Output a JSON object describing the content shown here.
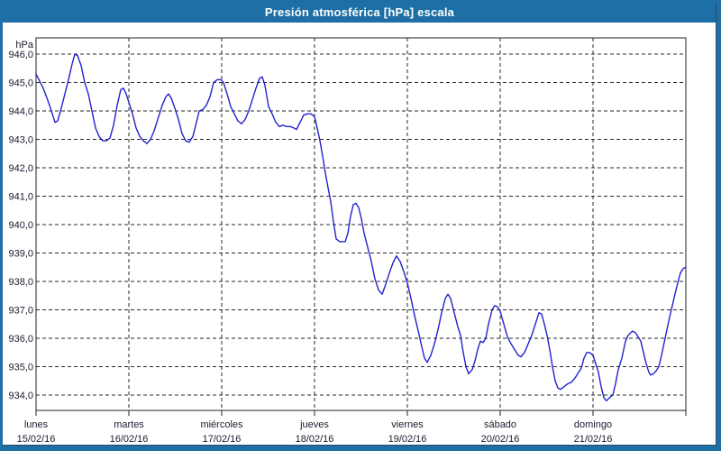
{
  "title": "Presión atmosférica [hPa] escala",
  "colors": {
    "titlebar_bg": "#1d6fa5",
    "titlebar_text": "#ffffff",
    "window_border": "#1d6fa5",
    "line": "#2222cc",
    "grid": "#2a2a2a",
    "frame": "#222222",
    "text": "#1a1a2e"
  },
  "y_axis": {
    "unit_label": "hPa",
    "tick_labels": [
      "946,0",
      "945,0",
      "944,0",
      "943,0",
      "942,0",
      "941,0",
      "940,0",
      "939,0",
      "938,0",
      "937,0",
      "936,0",
      "935,0",
      "934,0"
    ],
    "max": 946,
    "min": 934,
    "step": 1
  },
  "x_axis": {
    "days": [
      {
        "name": "lunes",
        "date": "15/02/16"
      },
      {
        "name": "martes",
        "date": "16/02/16"
      },
      {
        "name": "miércoles",
        "date": "17/02/16"
      },
      {
        "name": "jueves",
        "date": "18/02/16"
      },
      {
        "name": "viernes",
        "date": "19/02/16"
      },
      {
        "name": "sábado",
        "date": "20/02/16"
      },
      {
        "name": "domingo",
        "date": "21/02/16"
      }
    ]
  },
  "chart_data": {
    "type": "line",
    "title": "Presión atmosférica [hPa] escala",
    "ylabel": "hPa",
    "ylim": [
      934,
      946
    ],
    "grid": "dashed",
    "legend_position": "none",
    "x_unit": "days from 15/02/16 (0 = lunes 00:00, 7 = end of domingo)",
    "x_tick_positions": [
      0,
      1,
      2,
      3,
      4,
      5,
      6
    ],
    "series": [
      {
        "name": "Presión atmosférica",
        "color": "#2222cc",
        "points": [
          [
            0.0,
            945.3
          ],
          [
            0.039,
            945.05
          ],
          [
            0.078,
            944.8
          ],
          [
            0.117,
            944.45
          ],
          [
            0.155,
            944.1
          ],
          [
            0.204,
            943.6
          ],
          [
            0.233,
            943.65
          ],
          [
            0.272,
            944.1
          ],
          [
            0.311,
            944.6
          ],
          [
            0.35,
            945.1
          ],
          [
            0.388,
            945.65
          ],
          [
            0.417,
            946.0
          ],
          [
            0.447,
            945.95
          ],
          [
            0.485,
            945.6
          ],
          [
            0.524,
            945.0
          ],
          [
            0.563,
            944.6
          ],
          [
            0.602,
            944.0
          ],
          [
            0.641,
            943.4
          ],
          [
            0.68,
            943.1
          ],
          [
            0.718,
            942.95
          ],
          [
            0.757,
            942.95
          ],
          [
            0.796,
            943.05
          ],
          [
            0.835,
            943.5
          ],
          [
            0.874,
            944.2
          ],
          [
            0.913,
            944.75
          ],
          [
            0.942,
            944.8
          ],
          [
            0.971,
            944.6
          ],
          [
            1.0,
            944.3
          ],
          [
            1.039,
            943.9
          ],
          [
            1.078,
            943.4
          ],
          [
            1.117,
            943.1
          ],
          [
            1.155,
            942.95
          ],
          [
            1.194,
            942.85
          ],
          [
            1.233,
            943.0
          ],
          [
            1.272,
            943.3
          ],
          [
            1.311,
            943.7
          ],
          [
            1.359,
            944.2
          ],
          [
            1.398,
            944.5
          ],
          [
            1.427,
            944.6
          ],
          [
            1.456,
            944.45
          ],
          [
            1.495,
            944.1
          ],
          [
            1.534,
            943.7
          ],
          [
            1.573,
            943.2
          ],
          [
            1.612,
            942.95
          ],
          [
            1.65,
            942.9
          ],
          [
            1.689,
            943.1
          ],
          [
            1.728,
            943.6
          ],
          [
            1.757,
            944.0
          ],
          [
            1.796,
            944.05
          ],
          [
            1.835,
            944.2
          ],
          [
            1.874,
            944.5
          ],
          [
            1.913,
            945.0
          ],
          [
            1.951,
            945.1
          ],
          [
            1.99,
            945.1
          ],
          [
            2.019,
            945.0
          ],
          [
            2.058,
            944.6
          ],
          [
            2.097,
            944.15
          ],
          [
            2.136,
            943.9
          ],
          [
            2.175,
            943.65
          ],
          [
            2.214,
            943.55
          ],
          [
            2.252,
            943.7
          ],
          [
            2.291,
            944.0
          ],
          [
            2.33,
            944.4
          ],
          [
            2.369,
            944.8
          ],
          [
            2.408,
            945.15
          ],
          [
            2.437,
            945.2
          ],
          [
            2.466,
            944.9
          ],
          [
            2.505,
            944.15
          ],
          [
            2.544,
            943.9
          ],
          [
            2.583,
            943.6
          ],
          [
            2.621,
            943.45
          ],
          [
            2.66,
            943.5
          ],
          [
            2.699,
            943.45
          ],
          [
            2.738,
            943.45
          ],
          [
            2.777,
            943.4
          ],
          [
            2.806,
            943.35
          ],
          [
            2.845,
            943.6
          ],
          [
            2.883,
            943.85
          ],
          [
            2.922,
            943.9
          ],
          [
            2.961,
            943.9
          ],
          [
            3.0,
            943.8
          ],
          [
            3.029,
            943.4
          ],
          [
            3.058,
            942.95
          ],
          [
            3.087,
            942.4
          ],
          [
            3.117,
            941.8
          ],
          [
            3.146,
            941.3
          ],
          [
            3.175,
            940.8
          ],
          [
            3.204,
            940.1
          ],
          [
            3.233,
            939.5
          ],
          [
            3.272,
            939.4
          ],
          [
            3.301,
            939.4
          ],
          [
            3.33,
            939.4
          ],
          [
            3.359,
            939.7
          ],
          [
            3.388,
            940.3
          ],
          [
            3.417,
            940.7
          ],
          [
            3.447,
            940.75
          ],
          [
            3.476,
            940.6
          ],
          [
            3.505,
            940.2
          ],
          [
            3.534,
            939.7
          ],
          [
            3.573,
            939.2
          ],
          [
            3.612,
            938.7
          ],
          [
            3.65,
            938.1
          ],
          [
            3.689,
            937.7
          ],
          [
            3.728,
            937.55
          ],
          [
            3.767,
            937.9
          ],
          [
            3.806,
            938.3
          ],
          [
            3.845,
            938.65
          ],
          [
            3.883,
            938.9
          ],
          [
            3.922,
            938.7
          ],
          [
            3.961,
            938.35
          ],
          [
            4.0,
            937.95
          ],
          [
            4.039,
            937.4
          ],
          [
            4.078,
            936.8
          ],
          [
            4.117,
            936.25
          ],
          [
            4.155,
            935.7
          ],
          [
            4.184,
            935.3
          ],
          [
            4.214,
            935.15
          ],
          [
            4.252,
            935.4
          ],
          [
            4.291,
            935.8
          ],
          [
            4.33,
            936.3
          ],
          [
            4.369,
            936.9
          ],
          [
            4.408,
            937.4
          ],
          [
            4.437,
            937.55
          ],
          [
            4.466,
            937.4
          ],
          [
            4.505,
            936.9
          ],
          [
            4.544,
            936.4
          ],
          [
            4.573,
            936.1
          ],
          [
            4.602,
            935.5
          ],
          [
            4.631,
            935.0
          ],
          [
            4.66,
            934.75
          ],
          [
            4.699,
            934.9
          ],
          [
            4.728,
            935.2
          ],
          [
            4.757,
            935.6
          ],
          [
            4.786,
            935.9
          ],
          [
            4.816,
            935.85
          ],
          [
            4.845,
            936.0
          ],
          [
            4.874,
            936.5
          ],
          [
            4.913,
            937.0
          ],
          [
            4.942,
            937.15
          ],
          [
            4.971,
            937.1
          ],
          [
            5.0,
            936.95
          ],
          [
            5.039,
            936.5
          ],
          [
            5.078,
            936.05
          ],
          [
            5.117,
            935.8
          ],
          [
            5.155,
            935.6
          ],
          [
            5.194,
            935.4
          ],
          [
            5.223,
            935.35
          ],
          [
            5.262,
            935.5
          ],
          [
            5.301,
            935.8
          ],
          [
            5.34,
            936.1
          ],
          [
            5.379,
            936.5
          ],
          [
            5.417,
            936.9
          ],
          [
            5.447,
            936.85
          ],
          [
            5.476,
            936.5
          ],
          [
            5.505,
            936.1
          ],
          [
            5.534,
            935.6
          ],
          [
            5.563,
            935.0
          ],
          [
            5.592,
            934.5
          ],
          [
            5.621,
            934.25
          ],
          [
            5.65,
            934.2
          ],
          [
            5.689,
            934.3
          ],
          [
            5.728,
            934.4
          ],
          [
            5.767,
            934.45
          ],
          [
            5.806,
            934.6
          ],
          [
            5.845,
            934.8
          ],
          [
            5.874,
            934.95
          ],
          [
            5.903,
            935.3
          ],
          [
            5.932,
            935.5
          ],
          [
            5.961,
            935.5
          ],
          [
            6.0,
            935.4
          ],
          [
            6.029,
            935.1
          ],
          [
            6.058,
            934.8
          ],
          [
            6.087,
            934.3
          ],
          [
            6.117,
            933.9
          ],
          [
            6.146,
            933.8
          ],
          [
            6.175,
            933.9
          ],
          [
            6.214,
            934.0
          ],
          [
            6.243,
            934.4
          ],
          [
            6.272,
            934.9
          ],
          [
            6.311,
            935.3
          ],
          [
            6.35,
            935.9
          ],
          [
            6.379,
            936.1
          ],
          [
            6.408,
            936.2
          ],
          [
            6.427,
            936.25
          ],
          [
            6.456,
            936.2
          ],
          [
            6.485,
            936.05
          ],
          [
            6.515,
            935.9
          ],
          [
            6.544,
            935.5
          ],
          [
            6.573,
            935.1
          ],
          [
            6.602,
            934.8
          ],
          [
            6.621,
            934.7
          ],
          [
            6.65,
            934.75
          ],
          [
            6.68,
            934.85
          ],
          [
            6.709,
            935.0
          ],
          [
            6.738,
            935.4
          ],
          [
            6.767,
            935.85
          ],
          [
            6.796,
            936.3
          ],
          [
            6.825,
            936.75
          ],
          [
            6.854,
            937.15
          ],
          [
            6.883,
            937.55
          ],
          [
            6.913,
            937.95
          ],
          [
            6.942,
            938.3
          ],
          [
            6.971,
            938.45
          ],
          [
            7.0,
            938.5
          ]
        ]
      }
    ]
  }
}
